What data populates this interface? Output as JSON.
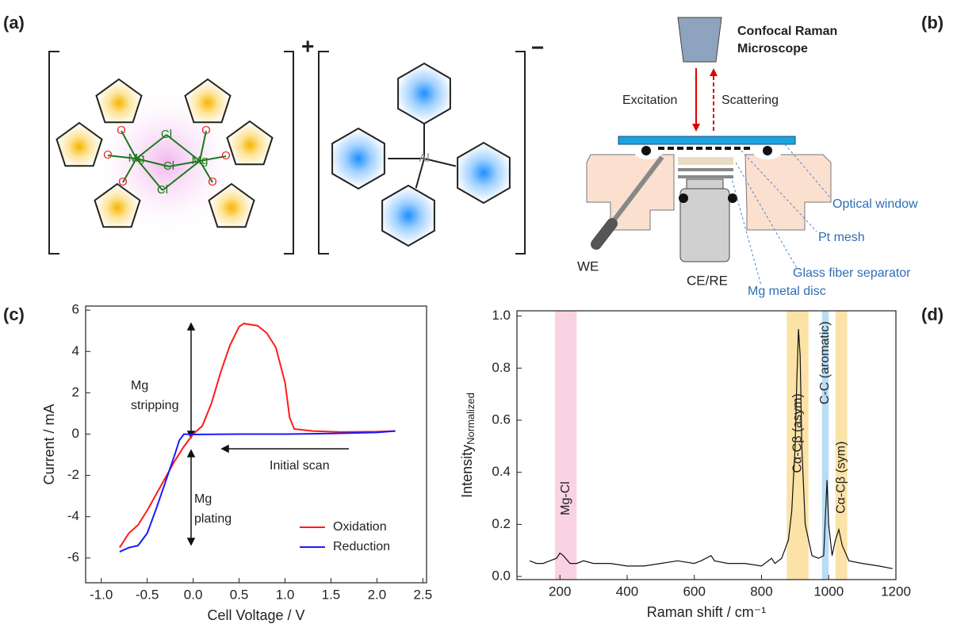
{
  "panel_labels": [
    "(a)",
    "(b)",
    "(c)",
    "(d)"
  ],
  "panel_a": {
    "cation_charge": "+",
    "anion_charge": "−",
    "cation_atoms": [
      "O",
      "O",
      "O",
      "O",
      "O",
      "O",
      "Mg",
      "Mg",
      "Cl",
      "Cl",
      "Cl"
    ],
    "anion_atoms": [
      "Al"
    ]
  },
  "panel_b": {
    "microscope": [
      "Confocal Raman",
      "Microscope"
    ],
    "excitation": "Excitation",
    "scattering": "Scattering",
    "callouts": [
      "Optical window",
      "Pt mesh",
      "Glass fiber separator",
      "Mg metal disc"
    ],
    "electrodes": [
      "WE",
      "CE/RE"
    ]
  },
  "chart_data": [
    {
      "type": "line",
      "x_label": "Cell Voltage / V",
      "y_label": "Current / mA",
      "xlim": [
        -1.17,
        2.54
      ],
      "xticks": [
        {
          "value": -1,
          "label": "-1.0"
        },
        -0.5,
        {
          "value": 0,
          "label": "0.0"
        },
        0.5,
        {
          "value": 1,
          "label": "1.0"
        },
        1.5,
        {
          "value": 2,
          "label": "2.0"
        },
        2.5
      ],
      "ylim": [
        -7.2,
        6.2
      ],
      "yticks": [
        -6,
        -4,
        -2,
        0,
        2,
        4,
        6
      ],
      "legend": "lower right",
      "annotations": [
        "Mg",
        "stripping",
        "Mg",
        "plating",
        "Initial scan"
      ],
      "series": [
        {
          "name": "Oxidation",
          "color": "#ff1a1a",
          "x": [
            -0.8,
            -0.7,
            -0.6,
            -0.5,
            -0.4,
            -0.3,
            -0.2,
            -0.1,
            0,
            0.1,
            0.2,
            0.3,
            0.4,
            0.5,
            0.55,
            0.7,
            0.8,
            0.9,
            1.0,
            1.05,
            1.1,
            1.3,
            1.6,
            2.0,
            2.2
          ],
          "values": [
            -5.5,
            -4.8,
            -4.4,
            -3.7,
            -2.9,
            -2.1,
            -1.3,
            -0.6,
            0,
            0.4,
            1.5,
            3.0,
            4.3,
            5.2,
            5.35,
            5.25,
            4.9,
            4.2,
            2.5,
            0.8,
            0.25,
            0.15,
            0.1,
            0.12,
            0.15
          ]
        },
        {
          "name": "Reduction",
          "color": "#1a1aff",
          "x": [
            2.2,
            2.0,
            1.5,
            1.0,
            0.5,
            0,
            -0.1,
            -0.15,
            -0.2,
            -0.3,
            -0.4,
            -0.5,
            -0.6,
            -0.7,
            -0.8
          ],
          "values": [
            0.15,
            0.08,
            0.03,
            0,
            0,
            -0.02,
            0,
            -0.3,
            -1.0,
            -2.3,
            -3.6,
            -4.8,
            -5.4,
            -5.5,
            -5.7
          ]
        }
      ]
    },
    {
      "type": "line",
      "x_label": "Raman shift / cm⁻¹",
      "y_label": "Intensity",
      "y_label_subscript": "Normalized",
      "xlim": [
        72,
        1200
      ],
      "xticks": [
        200,
        400,
        600,
        800,
        1000,
        1200
      ],
      "ylim": [
        -0.012,
        1.02
      ],
      "yticks": [
        {
          "value": 0,
          "label": "0.0"
        },
        0.2,
        0.4,
        0.6,
        0.8,
        {
          "value": 1,
          "label": "1.0"
        }
      ],
      "bands": [
        {
          "range": [
            185,
            250
          ],
          "color": "#f9d3e2",
          "label": "Mg-Cl"
        },
        {
          "range": [
            875,
            940
          ],
          "color": "#fbe3a8",
          "label": "Cα-Cβ (asym)"
        },
        {
          "range": [
            980,
            1000
          ],
          "color": "#b9dcf5",
          "label": "C-C (aromatic)"
        },
        {
          "range": [
            1020,
            1055
          ],
          "color": "#fbe3a8",
          "label": "Cα-Cβ (sym)"
        }
      ],
      "series": [
        {
          "color": "#111111",
          "x": [
            110,
            130,
            150,
            170,
            190,
            200,
            210,
            230,
            250,
            270,
            300,
            350,
            400,
            450,
            500,
            550,
            600,
            620,
            650,
            660,
            700,
            750,
            800,
            830,
            840,
            860,
            880,
            890,
            900,
            905,
            910,
            915,
            920,
            930,
            950,
            970,
            985,
            995,
            1000,
            1010,
            1020,
            1030,
            1040,
            1060,
            1100,
            1150,
            1190
          ],
          "values": [
            0.06,
            0.05,
            0.05,
            0.06,
            0.07,
            0.09,
            0.08,
            0.05,
            0.05,
            0.06,
            0.05,
            0.05,
            0.04,
            0.04,
            0.05,
            0.06,
            0.05,
            0.06,
            0.08,
            0.06,
            0.05,
            0.05,
            0.04,
            0.07,
            0.05,
            0.07,
            0.14,
            0.25,
            0.5,
            0.75,
            0.95,
            0.85,
            0.5,
            0.2,
            0.08,
            0.07,
            0.08,
            0.37,
            0.2,
            0.08,
            0.14,
            0.18,
            0.12,
            0.06,
            0.05,
            0.04,
            0.03
          ]
        }
      ]
    }
  ]
}
